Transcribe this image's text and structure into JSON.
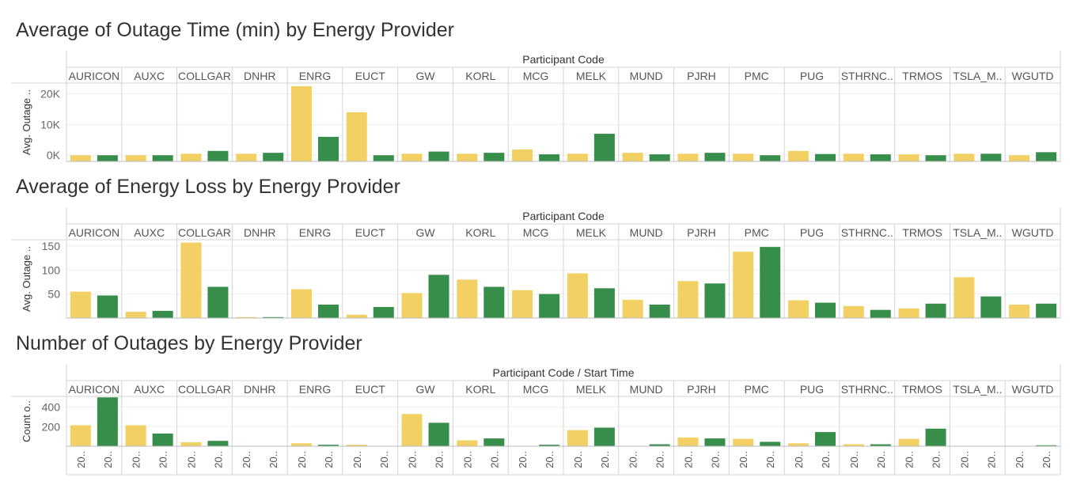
{
  "colors": {
    "series_a": "#F2D063",
    "series_b": "#378E4A",
    "grid": "#EEEEEE",
    "divider": "#D4D4D4"
  },
  "chart_data": [
    {
      "type": "bar",
      "title": "Average of Outage Time (min) by Energy Provider",
      "column_header": "Participant Code",
      "ylabel": "Avg. Outage ..",
      "ylim": [
        -2000,
        23500
      ],
      "ytick_values": [
        0,
        10000,
        20000
      ],
      "yticks": [
        "0K",
        "10K",
        "20K"
      ],
      "categories": [
        "AURICON",
        "AUXC",
        "COLLGAR",
        "DNHR",
        "ENRG",
        "EUCT",
        "GW",
        "KORL",
        "MCG",
        "MELK",
        "MUND",
        "PJRH",
        "PMC",
        "PUG",
        "STHRNC..",
        "TRMOS",
        "TSLA_M..",
        "WGUTD"
      ],
      "series": [
        {
          "color": "#F2D063",
          "values": [
            0,
            0,
            500,
            500,
            22500,
            14000,
            500,
            500,
            1900,
            500,
            800,
            500,
            500,
            1400,
            500,
            300,
            500,
            0
          ]
        },
        {
          "color": "#378E4A",
          "values": [
            0,
            0,
            1400,
            800,
            6000,
            0,
            1200,
            800,
            300,
            7000,
            300,
            800,
            0,
            400,
            300,
            0,
            500,
            1000
          ]
        }
      ],
      "grid": true,
      "legend": "none"
    },
    {
      "type": "bar",
      "title": "Average of Energy Loss by Energy Provider",
      "column_header": "Participant Code",
      "ylabel": "Avg. Outage ..",
      "ylim": [
        0,
        163
      ],
      "ytick_values": [
        50,
        100,
        150
      ],
      "yticks": [
        "50",
        "100",
        "150"
      ],
      "categories": [
        "AURICON",
        "AUXC",
        "COLLGAR",
        "DNHR",
        "ENRG",
        "EUCT",
        "GW",
        "KORL",
        "MCG",
        "MELK",
        "MUND",
        "PJRH",
        "PMC",
        "PUG",
        "STHRNC..",
        "TRMOS",
        "TSLA_M..",
        "WGUTD"
      ],
      "series": [
        {
          "color": "#F2D063",
          "values": [
            55,
            13,
            157,
            2,
            60,
            7,
            52,
            80,
            58,
            93,
            38,
            77,
            138,
            37,
            25,
            20,
            85,
            28
          ]
        },
        {
          "color": "#378E4A",
          "values": [
            47,
            15,
            65,
            2,
            28,
            23,
            90,
            65,
            50,
            62,
            28,
            72,
            148,
            32,
            17,
            30,
            45,
            30
          ]
        }
      ],
      "grid": true,
      "legend": "none"
    },
    {
      "type": "bar",
      "title": "Number of Outages by Energy Provider",
      "column_header": "Participant Code  /  Start Time",
      "ylabel": "Count o..",
      "ylim": [
        0,
        510
      ],
      "ytick_values": [
        200,
        400
      ],
      "yticks": [
        "200",
        "400"
      ],
      "x_tick_label": "20..",
      "categories": [
        "AURICON",
        "AUXC",
        "COLLGAR",
        "DNHR",
        "ENRG",
        "EUCT",
        "GW",
        "KORL",
        "MCG",
        "MELK",
        "MUND",
        "PJRH",
        "PMC",
        "PUG",
        "STHRNC..",
        "TRMOS",
        "TSLA_M..",
        "WGUTD"
      ],
      "series": [
        {
          "color": "#F2D063",
          "values": [
            215,
            215,
            40,
            0,
            30,
            15,
            330,
            60,
            0,
            165,
            0,
            90,
            75,
            30,
            20,
            75,
            0,
            0
          ]
        },
        {
          "color": "#378E4A",
          "values": [
            500,
            130,
            55,
            0,
            15,
            0,
            240,
            80,
            15,
            190,
            20,
            80,
            45,
            145,
            20,
            180,
            0,
            10
          ]
        }
      ],
      "grid": true,
      "legend": "none"
    }
  ]
}
